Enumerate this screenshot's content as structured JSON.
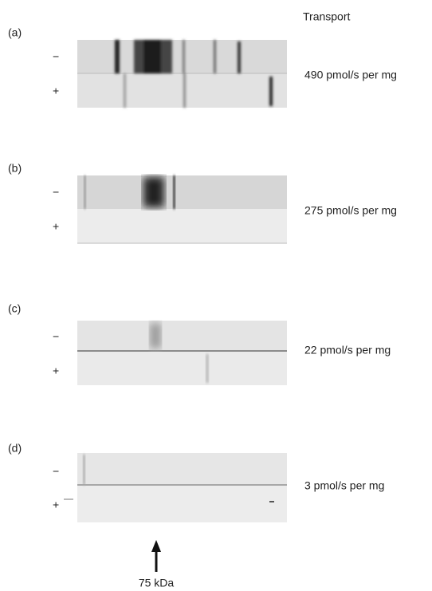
{
  "header": {
    "title": "Transport"
  },
  "panels": [
    {
      "label": "(a)",
      "minus": "−",
      "plus": "+",
      "transport": "490 pmol/s per mg"
    },
    {
      "label": "(b)",
      "minus": "−",
      "plus": "+",
      "transport": "275 pmol/s per mg"
    },
    {
      "label": "(c)",
      "minus": "−",
      "plus": "+",
      "transport": "22 pmol/s per mg"
    },
    {
      "label": "(d)",
      "minus": "−",
      "plus": "+",
      "transport": "3 pmol/s per mg"
    }
  ],
  "marker": {
    "label": "75 kDa"
  }
}
